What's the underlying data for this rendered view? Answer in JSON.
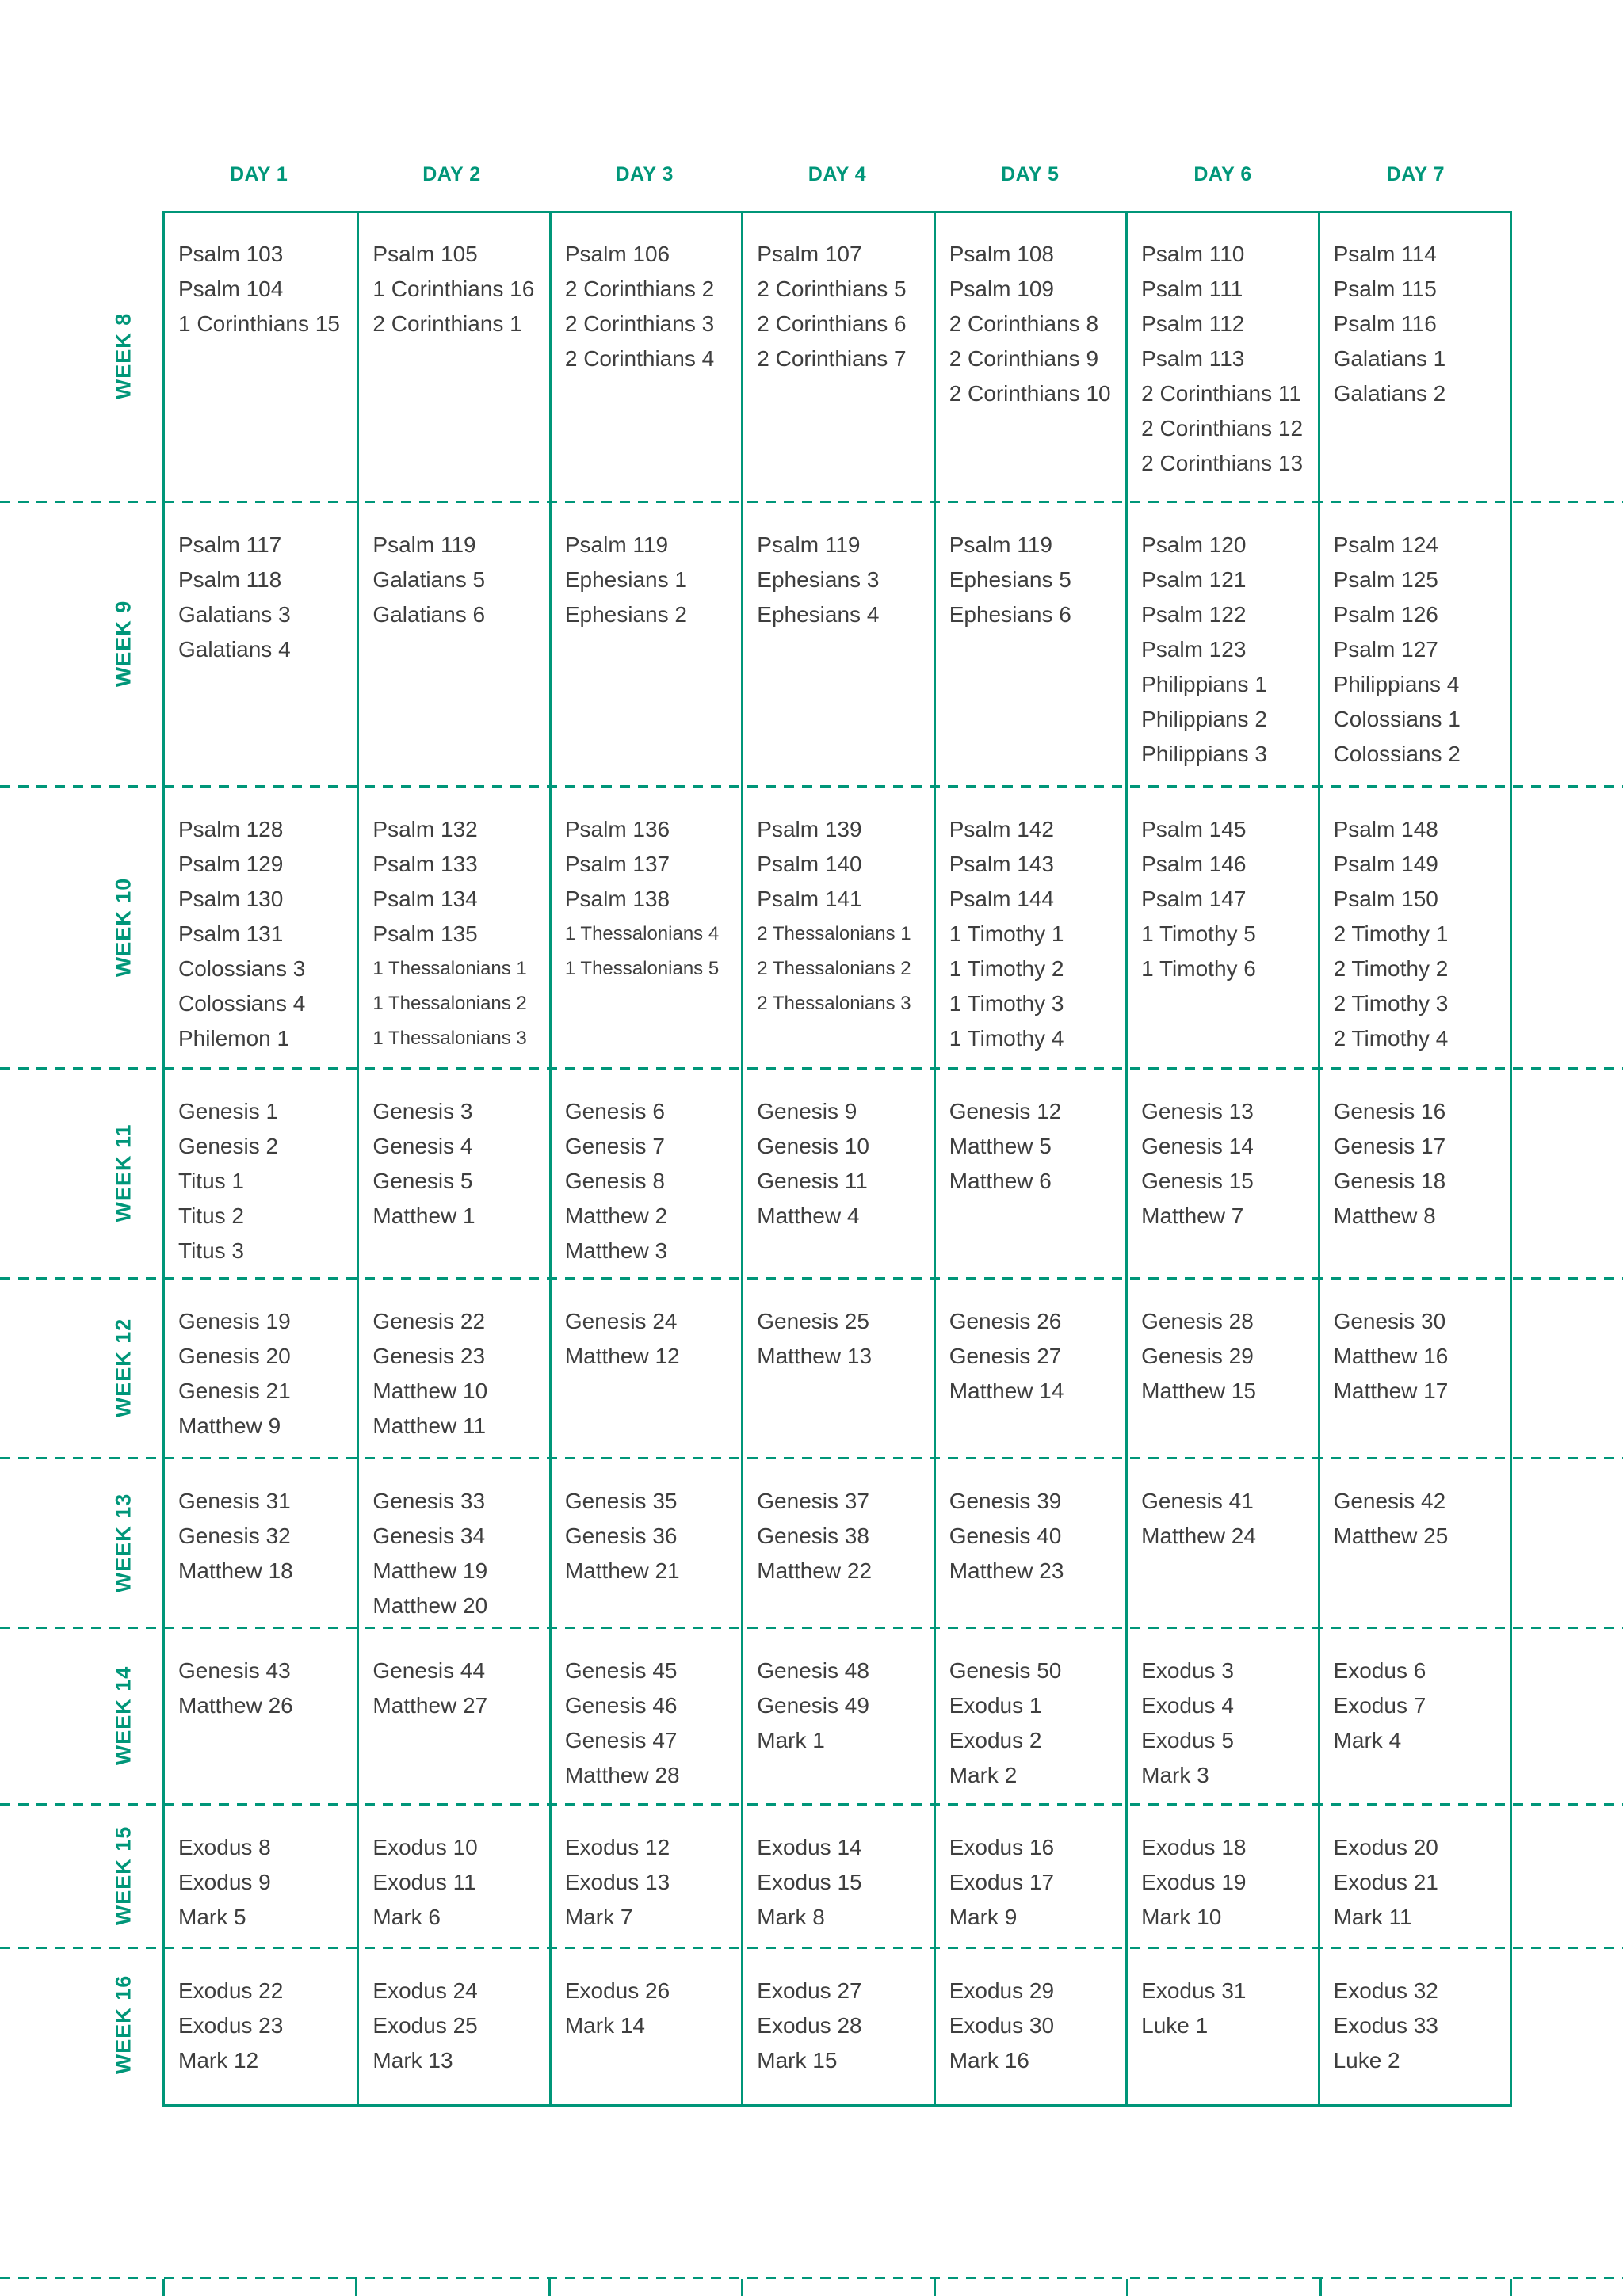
{
  "colors": {
    "accent_teal": "#009679",
    "body_text": "#3e3e3e",
    "background": "#ffffff"
  },
  "day_headers": [
    "DAY 1",
    "DAY 2",
    "DAY 3",
    "DAY 4",
    "DAY 5",
    "DAY 6",
    "DAY 7"
  ],
  "weeks": [
    {
      "label": "WEEK 8",
      "days": [
        [
          "Psalm 103",
          "Psalm 104",
          "1 Corinthians 15"
        ],
        [
          "Psalm 105",
          "1 Corinthians 16",
          "2 Corinthians 1"
        ],
        [
          "Psalm 106",
          "2 Corinthians 2",
          "2 Corinthians 3",
          "2 Corinthians 4"
        ],
        [
          "Psalm 107",
          "2 Corinthians 5",
          "2 Corinthians 6",
          "2 Corinthians 7"
        ],
        [
          "Psalm 108",
          "Psalm 109",
          "2 Corinthians 8",
          "2 Corinthians 9",
          "2 Corinthians 10"
        ],
        [
          "Psalm 110",
          "Psalm 111",
          "Psalm 112",
          "Psalm 113",
          "2 Corinthians 11",
          "2 Corinthians 12",
          "2 Corinthians 13"
        ],
        [
          "Psalm 114",
          "Psalm 115",
          "Psalm 116",
          "Galatians 1",
          "Galatians 2"
        ]
      ]
    },
    {
      "label": "WEEK 9",
      "days": [
        [
          "Psalm 117",
          "Psalm 118",
          "Galatians 3",
          "Galatians 4"
        ],
        [
          "Psalm 119",
          "Galatians 5",
          "Galatians 6"
        ],
        [
          "Psalm 119",
          "Ephesians 1",
          "Ephesians 2"
        ],
        [
          "Psalm 119",
          "Ephesians 3",
          "Ephesians 4"
        ],
        [
          "Psalm 119",
          "Ephesians 5",
          "Ephesians 6"
        ],
        [
          "Psalm 120",
          "Psalm 121",
          "Psalm 122",
          "Psalm 123",
          "Philippians 1",
          "Philippians 2",
          "Philippians 3"
        ],
        [
          "Psalm 124",
          "Psalm 125",
          "Psalm 126",
          "Psalm 127",
          "Philippians 4",
          "Colossians 1",
          "Colossians 2"
        ]
      ]
    },
    {
      "label": "WEEK 10",
      "days": [
        [
          "Psalm 128",
          "Psalm 129",
          "Psalm 130",
          "Psalm 131",
          "Colossians 3",
          "Colossians 4",
          "Philemon 1"
        ],
        [
          "Psalm 132",
          "Psalm 133",
          "Psalm 134",
          "Psalm 135",
          "1 Thessalonians 1",
          "1 Thessalonians 2",
          "1 Thessalonians 3"
        ],
        [
          "Psalm 136",
          "Psalm 137",
          "Psalm 138",
          "1 Thessalonians 4",
          "1 Thessalonians 5"
        ],
        [
          "Psalm 139",
          "Psalm 140",
          "Psalm 141",
          "2 Thessalonians 1",
          "2 Thessalonians 2",
          "2 Thessalonians 3"
        ],
        [
          "Psalm 142",
          "Psalm 143",
          "Psalm 144",
          "1 Timothy 1",
          "1 Timothy 2",
          "1 Timothy 3",
          "1 Timothy 4"
        ],
        [
          "Psalm 145",
          "Psalm 146",
          "Psalm 147",
          "1 Timothy 5",
          "1 Timothy 6"
        ],
        [
          "Psalm 148",
          "Psalm 149",
          "Psalm 150",
          "2 Timothy 1",
          "2 Timothy 2",
          "2 Timothy 3",
          "2 Timothy 4"
        ]
      ]
    },
    {
      "label": "WEEK 11",
      "days": [
        [
          "Genesis 1",
          "Genesis 2",
          "Titus 1",
          "Titus 2",
          "Titus 3"
        ],
        [
          "Genesis 3",
          "Genesis 4",
          "Genesis 5",
          "Matthew 1"
        ],
        [
          "Genesis 6",
          "Genesis 7",
          "Genesis 8",
          "Matthew 2",
          "Matthew 3"
        ],
        [
          "Genesis 9",
          "Genesis 10",
          "Genesis 11",
          "Matthew 4"
        ],
        [
          "Genesis 12",
          "Matthew 5",
          "Matthew 6"
        ],
        [
          "Genesis 13",
          "Genesis 14",
          "Genesis 15",
          "Matthew 7"
        ],
        [
          "Genesis 16",
          "Genesis 17",
          "Genesis 18",
          "Matthew 8"
        ]
      ]
    },
    {
      "label": "WEEK 12",
      "days": [
        [
          "Genesis 19",
          "Genesis 20",
          "Genesis 21",
          "Matthew 9"
        ],
        [
          "Genesis 22",
          "Genesis 23",
          "Matthew 10",
          "Matthew 11"
        ],
        [
          "Genesis 24",
          "Matthew 12"
        ],
        [
          "Genesis 25",
          "Matthew 13"
        ],
        [
          "Genesis 26",
          "Genesis 27",
          "Matthew 14"
        ],
        [
          "Genesis 28",
          "Genesis 29",
          "Matthew 15"
        ],
        [
          "Genesis 30",
          "Matthew 16",
          "Matthew 17"
        ]
      ]
    },
    {
      "label": "WEEK 13",
      "days": [
        [
          "Genesis 31",
          "Genesis 32",
          "Matthew 18"
        ],
        [
          "Genesis 33",
          "Genesis 34",
          "Matthew 19",
          "Matthew 20"
        ],
        [
          "Genesis 35",
          "Genesis 36",
          "Matthew 21"
        ],
        [
          "Genesis 37",
          "Genesis 38",
          "Matthew 22"
        ],
        [
          "Genesis 39",
          "Genesis 40",
          "Matthew 23"
        ],
        [
          "Genesis 41",
          "Matthew 24"
        ],
        [
          "Genesis 42",
          "Matthew 25"
        ]
      ]
    },
    {
      "label": "WEEK 14",
      "days": [
        [
          "Genesis 43",
          "Matthew 26"
        ],
        [
          "Genesis 44",
          "Matthew 27"
        ],
        [
          "Genesis 45",
          "Genesis 46",
          "Genesis 47",
          "Matthew 28"
        ],
        [
          "Genesis 48",
          "Genesis 49",
          "Mark 1"
        ],
        [
          "Genesis 50",
          "Exodus 1",
          "Exodus 2",
          "Mark 2"
        ],
        [
          "Exodus 3",
          "Exodus 4",
          "Exodus 5",
          "Mark 3"
        ],
        [
          "Exodus 6",
          "Exodus 7",
          "Mark 4"
        ]
      ]
    },
    {
      "label": "WEEK 15",
      "days": [
        [
          "Exodus 8",
          "Exodus 9",
          "Mark 5"
        ],
        [
          "Exodus 10",
          "Exodus 11",
          "Mark 6"
        ],
        [
          "Exodus 12",
          "Exodus 13",
          "Mark 7"
        ],
        [
          "Exodus 14",
          "Exodus 15",
          "Mark 8"
        ],
        [
          "Exodus 16",
          "Exodus 17",
          "Mark 9"
        ],
        [
          "Exodus 18",
          "Exodus 19",
          "Mark 10"
        ],
        [
          "Exodus 20",
          "Exodus 21",
          "Mark 11"
        ]
      ]
    },
    {
      "label": "WEEK 16",
      "days": [
        [
          "Exodus 22",
          "Exodus 23",
          "Mark 12"
        ],
        [
          "Exodus 24",
          "Exodus 25",
          "Mark 13"
        ],
        [
          "Exodus 26",
          "Mark 14"
        ],
        [
          "Exodus 27",
          "Exodus 28",
          "Mark 15"
        ],
        [
          "Exodus 29",
          "Exodus 30",
          "Mark 16"
        ],
        [
          "Exodus 31",
          "Luke 1"
        ],
        [
          "Exodus 32",
          "Exodus 33",
          "Luke 2"
        ]
      ]
    }
  ]
}
